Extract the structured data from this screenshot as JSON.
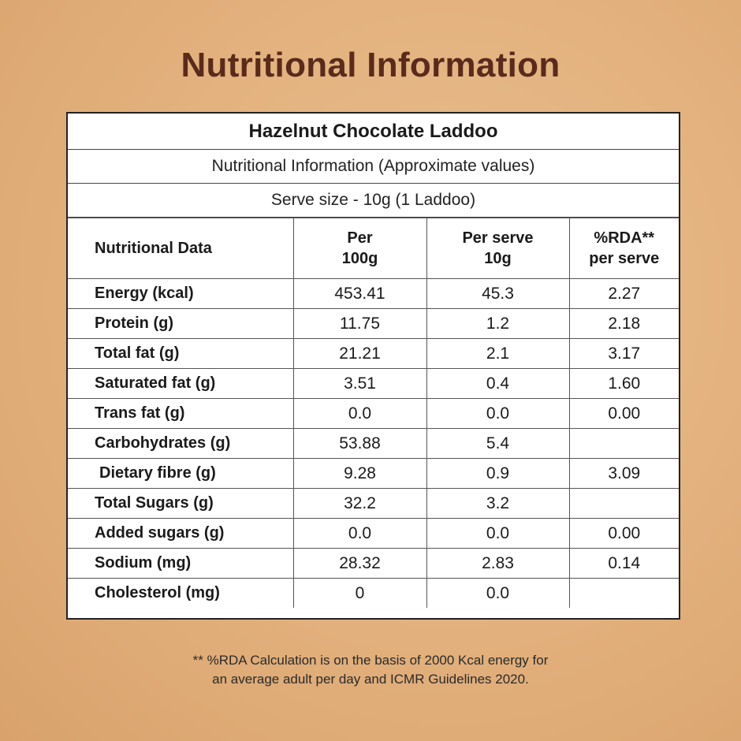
{
  "title": "Nutritional Information",
  "product": "Hazelnut Chocolate Laddoo",
  "subtitle": "Nutritional Information (Approximate values)",
  "serve": "Serve size - 10g (1 Laddoo)",
  "columns": {
    "c0": "Nutritional Data",
    "c1a": "Per",
    "c1b": "100g",
    "c2a": "Per serve",
    "c2b": "10g",
    "c3a": "%RDA**",
    "c3b": "per serve"
  },
  "rows": [
    {
      "name": "Energy (kcal)",
      "per100": "453.41",
      "serve": "45.3",
      "rda": "2.27"
    },
    {
      "name": "Protein (g)",
      "per100": "11.75",
      "serve": "1.2",
      "rda": "2.18"
    },
    {
      "name": "Total fat (g)",
      "per100": "21.21",
      "serve": "2.1",
      "rda": "3.17"
    },
    {
      "name": "Saturated fat (g)",
      "per100": "3.51",
      "serve": "0.4",
      "rda": "1.60"
    },
    {
      "name": "Trans fat (g)",
      "per100": "0.0",
      "serve": "0.0",
      "rda": "0.00"
    },
    {
      "name": "Carbohydrates (g)",
      "per100": "53.88",
      "serve": "5.4",
      "rda": ""
    },
    {
      "name": "Dietary fibre (g)",
      "per100": "9.28",
      "serve": "0.9",
      "rda": "3.09"
    },
    {
      "name": "Total Sugars (g)",
      "per100": "32.2",
      "serve": "3.2",
      "rda": ""
    },
    {
      "name": "Added sugars (g)",
      "per100": "0.0",
      "serve": "0.0",
      "rda": "0.00"
    },
    {
      "name": "Sodium (mg)",
      "per100": "28.32",
      "serve": "2.83",
      "rda": "0.14"
    },
    {
      "name": "Cholesterol (mg)",
      "per100": "0",
      "serve": "0.0",
      "rda": ""
    }
  ],
  "footnote_line1": "** %RDA Calculation is on the basis of 2000 Kcal energy for",
  "footnote_line2": "an average adult per day and ICMR Guidelines 2020."
}
